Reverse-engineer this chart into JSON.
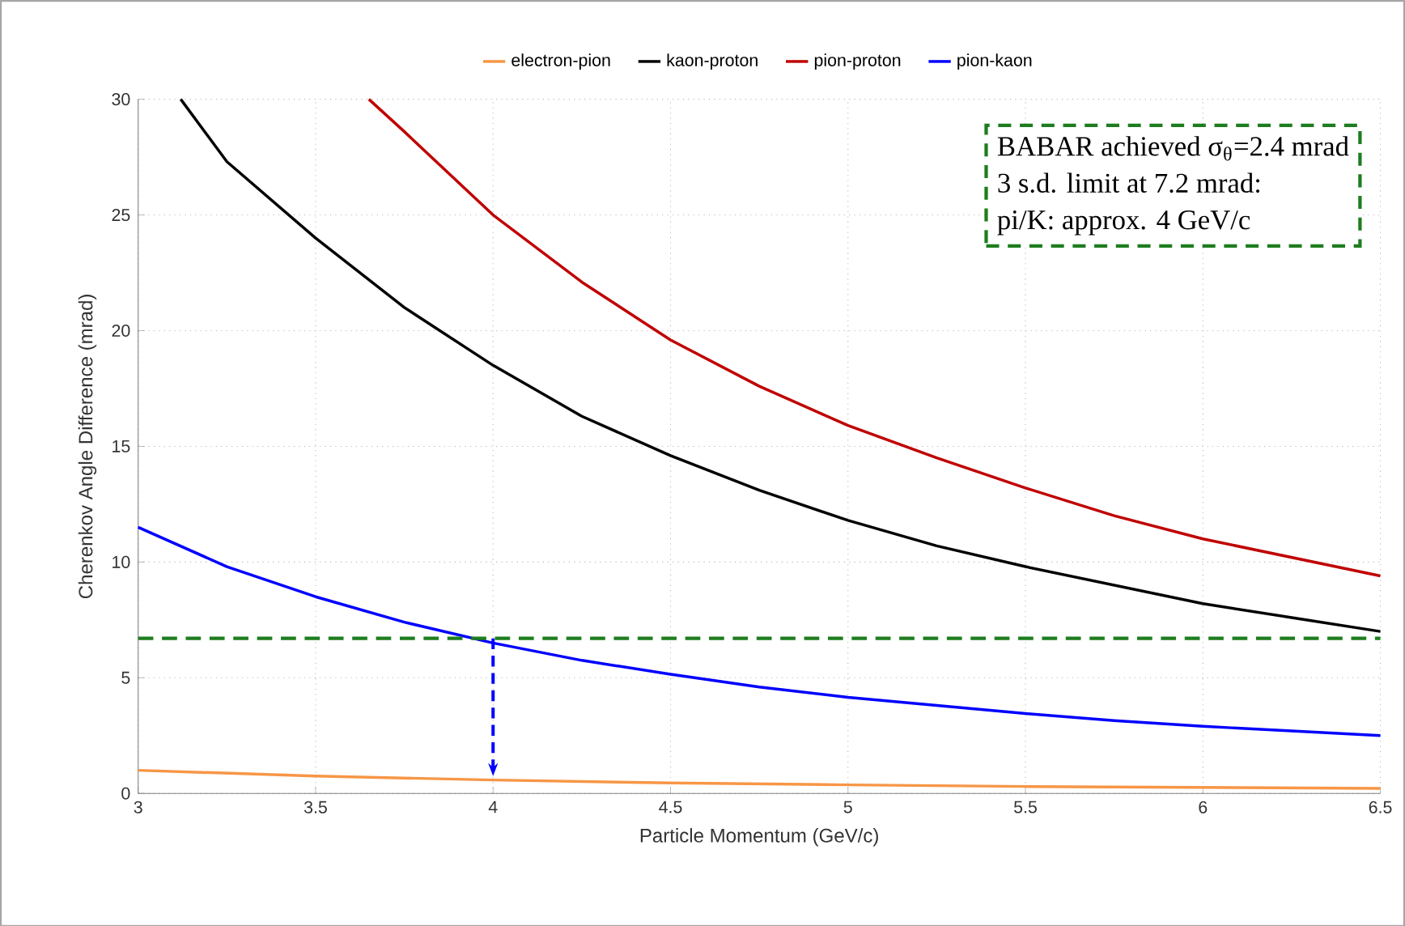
{
  "chart_data": {
    "type": "line",
    "xlabel": "Particle Momentum (GeV/c)",
    "ylabel": "Cherenkov Angle Difference (mrad)",
    "xlim": [
      3,
      6.5
    ],
    "ylim": [
      0,
      30
    ],
    "xticks": [
      3,
      3.5,
      4,
      4.5,
      5,
      5.5,
      6,
      6.5
    ],
    "yticks": [
      0,
      5,
      10,
      15,
      20,
      25,
      30
    ],
    "grid": true,
    "legend": "top",
    "marker": "none",
    "line_style": "solid",
    "series": [
      {
        "name": "electron-pion",
        "color": "#f79646",
        "x": [
          3,
          3.5,
          4,
          4.5,
          5,
          5.5,
          6,
          6.5
        ],
        "values": [
          1.0,
          0.75,
          0.58,
          0.45,
          0.37,
          0.3,
          0.26,
          0.22
        ]
      },
      {
        "name": "kaon-proton",
        "color": "#000000",
        "x": [
          3.12,
          3.25,
          3.5,
          3.75,
          4,
          4.25,
          4.5,
          4.75,
          5,
          5.25,
          5.5,
          5.75,
          6,
          6.25,
          6.5
        ],
        "values": [
          30,
          27.3,
          24,
          21,
          18.5,
          16.3,
          14.6,
          13.1,
          11.8,
          10.7,
          9.8,
          9.0,
          8.2,
          7.6,
          7.0
        ]
      },
      {
        "name": "pion-proton",
        "color": "#c00000",
        "x": [
          3.65,
          3.75,
          4,
          4.25,
          4.5,
          4.75,
          5,
          5.25,
          5.5,
          5.75,
          6,
          6.25,
          6.5
        ],
        "values": [
          30,
          28.6,
          25,
          22.1,
          19.6,
          17.6,
          15.9,
          14.5,
          13.2,
          12.0,
          11.0,
          10.2,
          9.4
        ]
      },
      {
        "name": "pion-kaon",
        "color": "#0000ff",
        "x": [
          3,
          3.25,
          3.5,
          3.75,
          4,
          4.25,
          4.5,
          4.75,
          5,
          5.25,
          5.5,
          5.75,
          6,
          6.25,
          6.5
        ],
        "values": [
          11.5,
          9.8,
          8.5,
          7.4,
          6.5,
          5.75,
          5.15,
          4.6,
          4.15,
          3.8,
          3.45,
          3.15,
          2.9,
          2.7,
          2.5
        ]
      }
    ],
    "ref_lines": [
      {
        "axis": "y",
        "value": 6.7,
        "color": "#1e7d1e",
        "line_style": "dashed"
      }
    ],
    "annotations": [
      "BABAR achieved σ$_{θ}$=2.4 mrad",
      "3 s.d. limit at 7.2 mrad:",
      "pi/K: approx. 4 GeV/c"
    ]
  }
}
